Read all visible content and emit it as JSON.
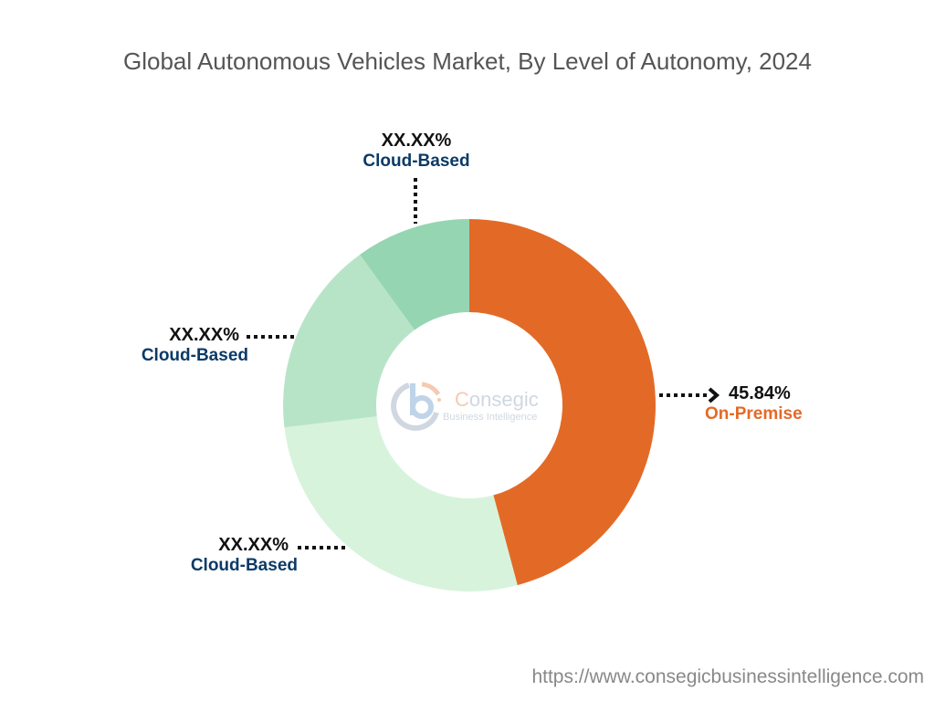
{
  "chart_data": {
    "type": "pie",
    "title": "Global Autonomous Vehicles Market, By Level of Autonomy, 2024",
    "slices": [
      {
        "label": "On-Premise",
        "value_label": "45.84%",
        "value": 45.84,
        "color": "#E36A26",
        "label_color": "#E36A26"
      },
      {
        "label": "Cloud-Based",
        "value_label": "XX.XX%",
        "value": 27.26,
        "color": "#D8F3DC",
        "label_color": "#0B3A66"
      },
      {
        "label": "Cloud-Based",
        "value_label": "XX.XX%",
        "value": 16.9,
        "color": "#B7E4C7",
        "label_color": "#0B3A66"
      },
      {
        "label": "Cloud-Based",
        "value_label": "XX.XX%",
        "value": 10.0,
        "color": "#95D5B2",
        "label_color": "#0B3A66"
      }
    ],
    "donut": true
  },
  "logo": {
    "name": "Consegic",
    "tagline": "Business Intelligence"
  },
  "footer": {
    "url": "https://www.consegicbusinessintelligence.com"
  }
}
